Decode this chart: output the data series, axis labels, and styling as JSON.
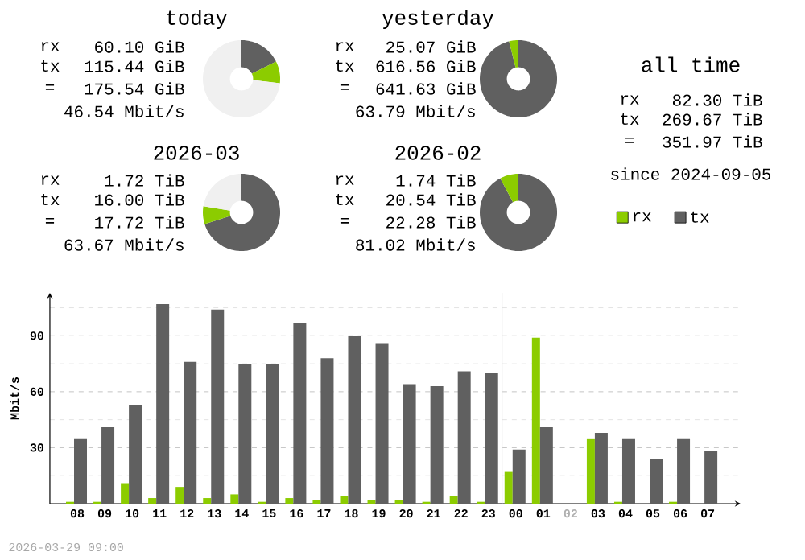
{
  "chart_data": [
    {
      "type": "donut",
      "title": "today",
      "categories": [
        null,
        null,
        null
      ],
      "values": [
        17.6,
        9.2,
        73.2
      ],
      "colors": [
        "#606060",
        "#8ccc00",
        "#f0f0f0"
      ],
      "annotations": [
        "rx",
        "60.10 GiB",
        "tx",
        "115.44 GiB",
        "=",
        "175.54 GiB",
        "46.54 Mbit/s"
      ]
    },
    {
      "type": "donut",
      "title": "yesterday",
      "categories": [
        null,
        null
      ],
      "values": [
        96.1,
        3.9
      ],
      "colors": [
        "#606060",
        "#8ccc00"
      ],
      "annotations": [
        "rx",
        "25.07 GiB",
        "tx",
        "616.56 GiB",
        "=",
        "641.63 GiB",
        "63.79 Mbit/s"
      ]
    },
    {
      "type": "other",
      "title": "all time",
      "annotations": [
        "rx",
        "82.30 TiB",
        "tx",
        "269.67 TiB",
        "=",
        "351.97 TiB",
        "since 2024-09-05"
      ]
    },
    {
      "type": "donut",
      "title": "2026-03",
      "categories": [
        null,
        null,
        null
      ],
      "values": [
        70.1,
        7.5,
        22.4
      ],
      "colors": [
        "#606060",
        "#8ccc00",
        "#f0f0f0"
      ],
      "annotations": [
        "rx",
        "1.72 TiB",
        "tx",
        "16.00 TiB",
        "=",
        "17.72 TiB",
        "63.67 Mbit/s"
      ]
    },
    {
      "type": "donut",
      "title": "2026-02",
      "categories": [
        null,
        null
      ],
      "values": [
        92.2,
        7.8
      ],
      "colors": [
        "#606060",
        "#8ccc00"
      ],
      "annotations": [
        "rx",
        "1.74 TiB",
        "tx",
        "20.54 TiB",
        "=",
        "22.28 TiB",
        "81.02 Mbit/s"
      ]
    },
    {
      "type": "bar",
      "ylabel": "Mbit/s",
      "categories": [
        "08",
        "09",
        "10",
        "11",
        "12",
        "13",
        "14",
        "15",
        "16",
        "17",
        "18",
        "19",
        "20",
        "21",
        "22",
        "23",
        "00",
        "01",
        "02",
        "03",
        "04",
        "05",
        "06",
        "07"
      ],
      "series": [
        {
          "name": "rx",
          "color": "#8ccc00",
          "values": [
            1,
            1,
            11,
            3,
            9,
            3,
            5,
            1,
            3,
            2,
            4,
            2,
            2,
            1,
            4,
            1,
            17,
            89,
            null,
            35,
            1,
            0,
            1,
            0
          ]
        },
        {
          "name": "tx",
          "color": "#606060",
          "values": [
            35,
            41,
            53,
            107,
            76,
            104,
            75,
            75,
            97,
            78,
            90,
            86,
            64,
            63,
            71,
            70,
            29,
            41,
            null,
            38,
            35,
            24,
            35,
            28
          ]
        }
      ],
      "ylim": [
        0,
        113
      ],
      "yticks": [
        {
          "value": 15,
          "label": null
        },
        30,
        {
          "value": 45,
          "label": null
        },
        60,
        {
          "value": 75,
          "label": null
        },
        90,
        {
          "value": 105,
          "label": null
        }
      ],
      "grid": "y",
      "legend": "top right",
      "ref_lines": [
        {
          "axis": "x",
          "value": "00",
          "color": "#dcdcdc"
        }
      ],
      "annotations": [
        "2026-03-29 09:00"
      ]
    }
  ]
}
